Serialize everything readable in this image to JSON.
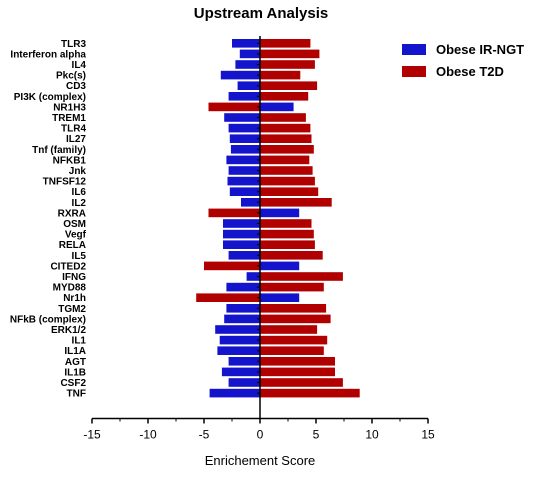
{
  "chart_data": {
    "type": "bar",
    "orientation": "horizontal",
    "title": "Upstream Analysis",
    "xlabel": "Enrichement Score",
    "ylabel": "",
    "xlim": [
      -15,
      15
    ],
    "x_ticks": [
      "-15",
      "-10",
      "-5",
      "0",
      "5",
      "10",
      "15"
    ],
    "legend_position": "top-right",
    "categories": [
      "TLR3",
      "Interferon alpha",
      "IL4",
      "Pkc(s)",
      "CD3",
      "PI3K (complex)",
      "NR1H3",
      "TREM1",
      "TLR4",
      "IL27",
      "Tnf (family)",
      "NFKB1",
      "Jnk",
      "TNFSF12",
      "IL6",
      "IL2",
      "RXRA",
      "OSM",
      "Vegf",
      "RELA",
      "IL5",
      "CITED2",
      "IFNG",
      "MYD88",
      "Nr1h",
      "TGM2",
      "NFkB (complex)",
      "ERK1/2",
      "IL1",
      "IL1A",
      "AGT",
      "IL1B",
      "CSF2",
      "TNF"
    ],
    "series": [
      {
        "name": "Obese IR-NGT",
        "color": "#1414cc",
        "values": [
          -2.5,
          -1.8,
          -2.2,
          -3.5,
          -2.0,
          -2.8,
          3.0,
          -3.2,
          -2.8,
          -2.7,
          -2.6,
          -3.0,
          -2.8,
          -2.9,
          -2.7,
          -1.7,
          3.5,
          -3.3,
          -3.3,
          -3.3,
          -2.8,
          3.5,
          -1.2,
          -3.0,
          3.5,
          -3.0,
          -3.2,
          -4.0,
          -3.6,
          -3.8,
          -2.8,
          -3.4,
          -2.8,
          -4.5
        ]
      },
      {
        "name": "Obese T2D",
        "color": "#b00000",
        "values": [
          4.5,
          5.3,
          4.9,
          3.6,
          5.1,
          4.3,
          -4.6,
          4.1,
          4.5,
          4.6,
          4.8,
          4.4,
          4.7,
          4.9,
          5.2,
          6.4,
          -4.6,
          4.6,
          4.8,
          4.9,
          5.6,
          -5.0,
          7.4,
          5.7,
          -5.7,
          5.9,
          6.3,
          5.1,
          6.0,
          5.7,
          6.7,
          6.7,
          7.4,
          8.9
        ]
      }
    ]
  }
}
